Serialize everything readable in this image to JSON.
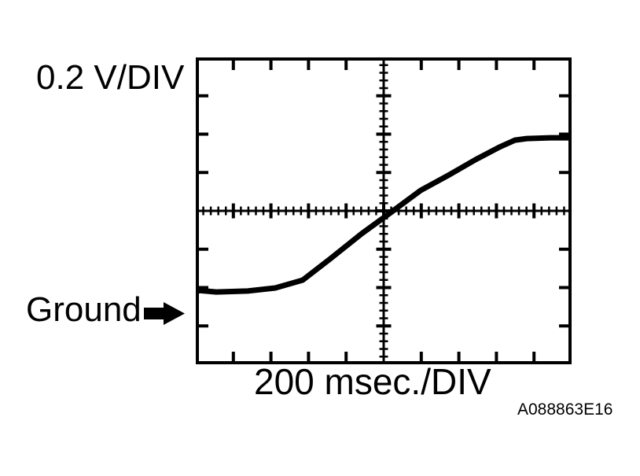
{
  "figure_code": "A088863E16",
  "labels": {
    "vertical_scale": "0.2 V/DIV",
    "ground": "Ground",
    "horizontal_scale": "200 msec./DIV"
  },
  "colors": {
    "ink": "#000000",
    "background": "#ffffff"
  },
  "chart_data": {
    "type": "line",
    "title": "Oscilloscope waveform (S-curve sweep rising left to right)",
    "x_units": "msec",
    "y_units": "V",
    "x_per_div": 200,
    "y_per_div": 0.2,
    "x_divisions": 10,
    "y_divisions": 8,
    "minor_ticks_per_div": 5,
    "grid": "center crosshair lines with minor ticks; division ticks on all four borders",
    "x_range_ms": [
      -1000,
      1000
    ],
    "y_range_v_rel_center": [
      -0.8,
      0.8
    ],
    "ground_marker_v_rel_center": -0.53,
    "legend": "none",
    "series": [
      {
        "name": "signal",
        "points": [
          [
            -996,
            -0.414
          ],
          [
            -891,
            -0.423
          ],
          [
            -724,
            -0.418
          ],
          [
            -577,
            -0.402
          ],
          [
            -431,
            -0.361
          ],
          [
            -284,
            -0.25
          ],
          [
            -117,
            -0.119
          ],
          [
            50,
            0.0
          ],
          [
            197,
            0.107
          ],
          [
            343,
            0.185
          ],
          [
            489,
            0.267
          ],
          [
            615,
            0.332
          ],
          [
            699,
            0.369
          ],
          [
            761,
            0.377
          ],
          [
            887,
            0.381
          ],
          [
            996,
            0.381
          ]
        ]
      }
    ]
  }
}
